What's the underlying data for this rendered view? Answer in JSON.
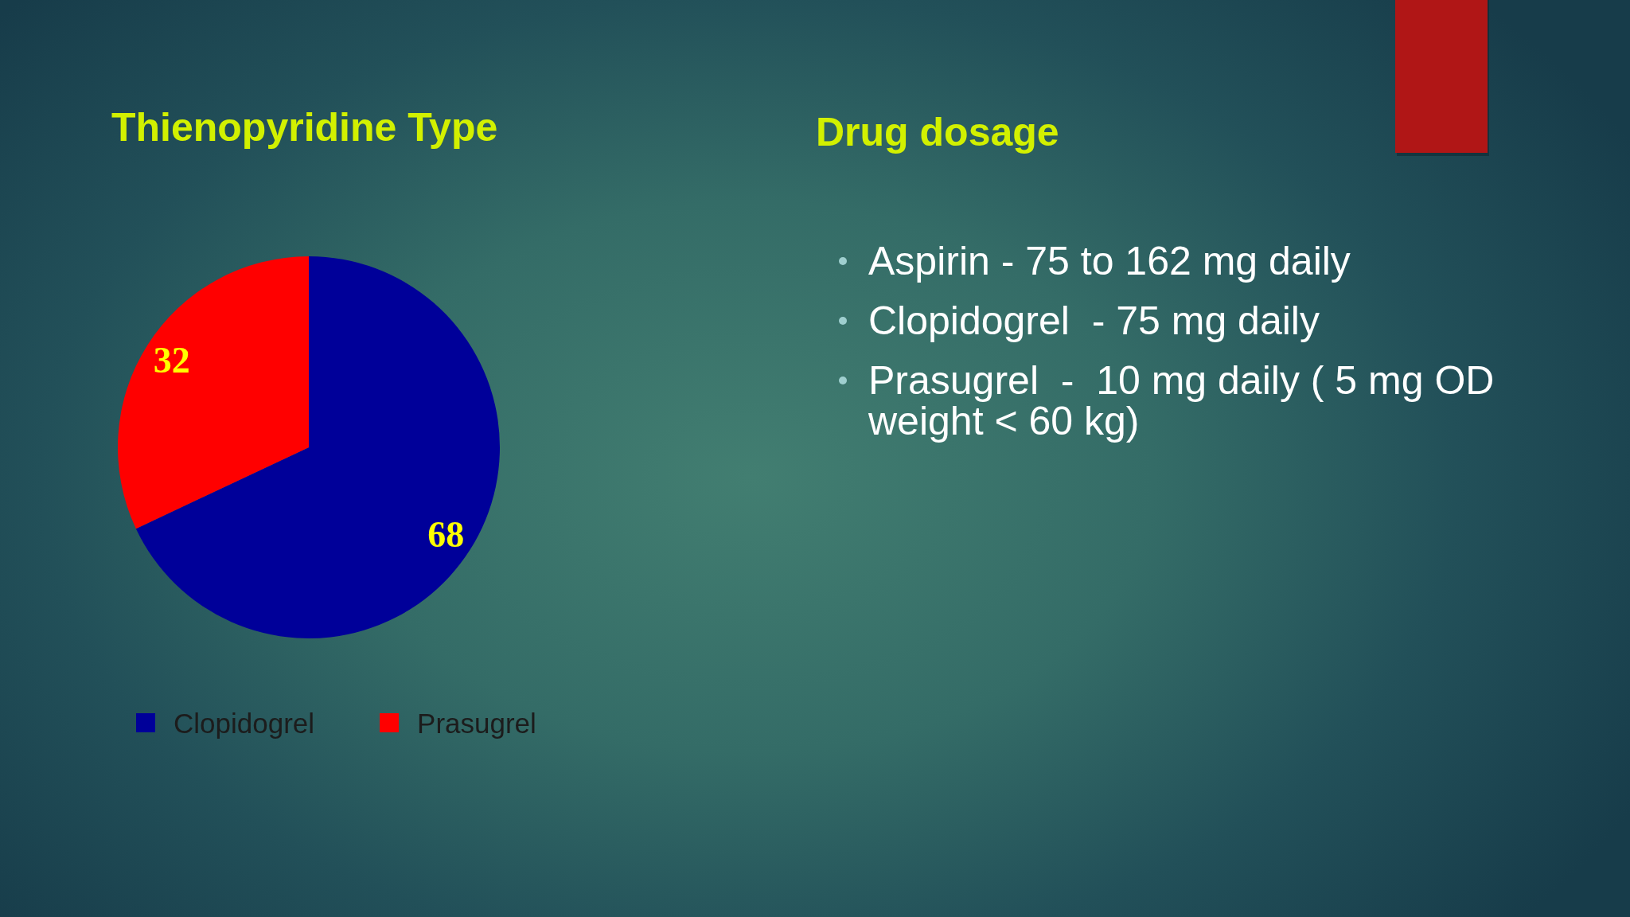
{
  "chart_data": [
    {
      "type": "pie",
      "title": "Thienopyridine Type",
      "categories": [
        "Clopidogrel",
        "Prasugrel"
      ],
      "values": [
        68,
        32
      ],
      "colors": [
        "#000099",
        "#ff0000"
      ],
      "data_labels": true,
      "legend": "bottom"
    },
    {
      "type": "other",
      "title": "Drug dosage",
      "annotations": [
        "Aspirin - 75 to 162 mg daily",
        "Clopidogrel  - 75 mg daily",
        "Prasugrel  -  10 mg daily ( 5 mg OD weight < 60 kg)"
      ]
    }
  ]
}
